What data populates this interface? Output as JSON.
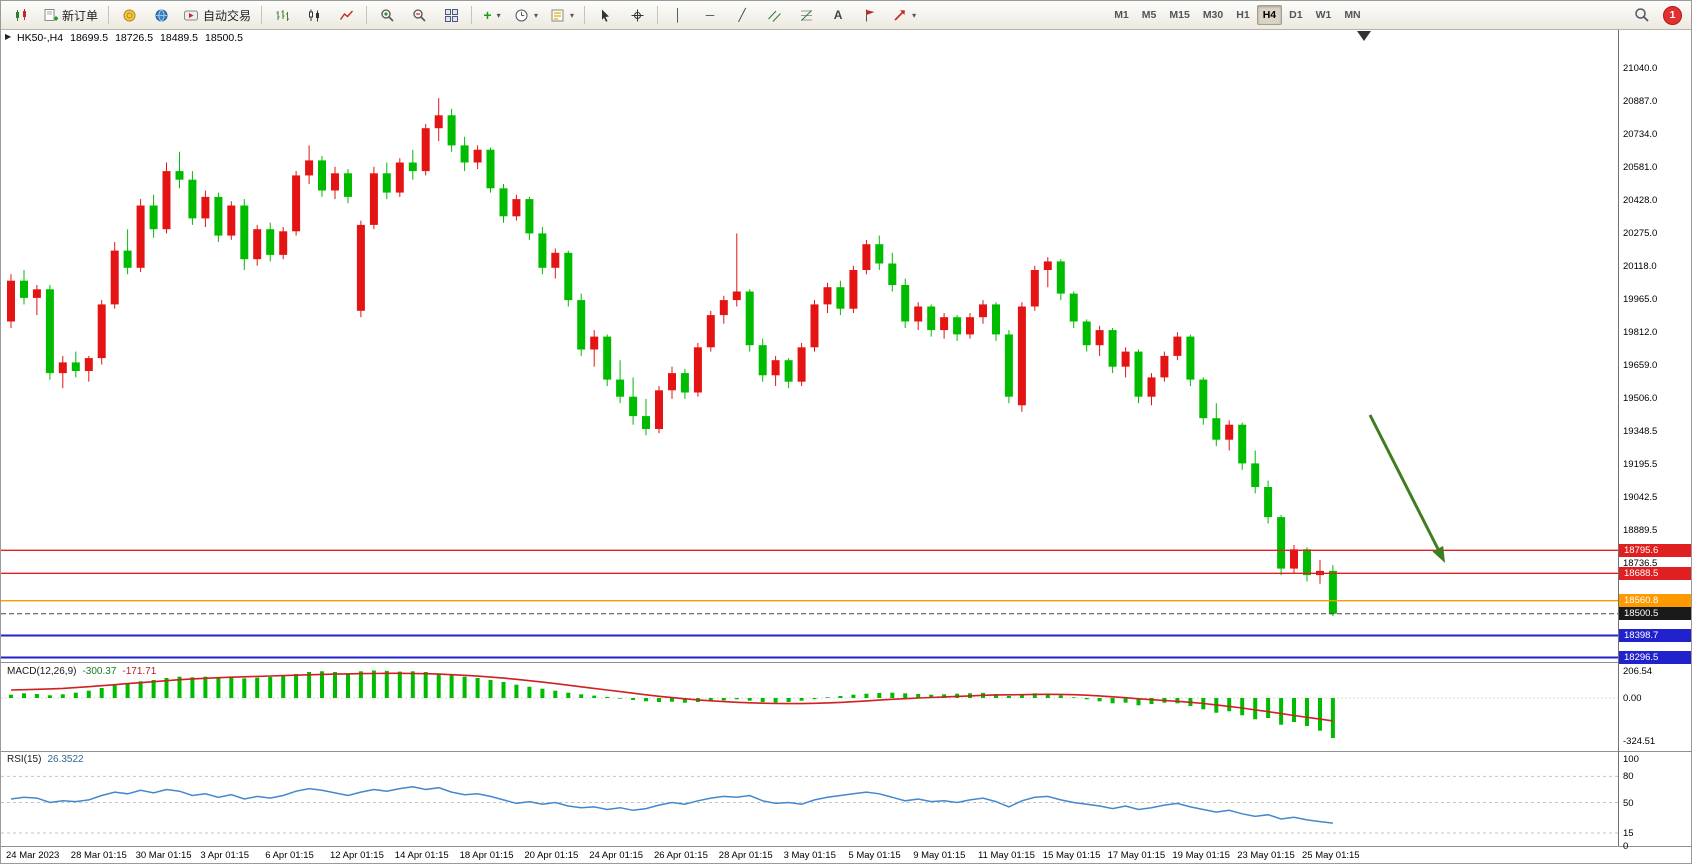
{
  "toolbar": {
    "buttons": {
      "new_order": "新订单",
      "auto_trading": "自动交易"
    },
    "timeframes": {
      "items": [
        "M1",
        "M5",
        "M15",
        "M30",
        "H1",
        "H4",
        "D1",
        "W1",
        "MN"
      ],
      "active": "H4"
    },
    "notification_count": "1"
  },
  "icons": {
    "vline": "│",
    "hline": "─",
    "trend": "╱",
    "text_tool": "A",
    "caret": "▾",
    "one_click": "▶",
    "indicator_plus": "+"
  },
  "chart": {
    "symbol_line": "HK50-,H4",
    "ohlc": {
      "open": "18699.5",
      "high": "18726.5",
      "low": "18489.5",
      "close": "18500.5"
    },
    "price_axis": [
      "21040.0",
      "20887.0",
      "20734.0",
      "20581.0",
      "20428.0",
      "20275.0",
      "20118.0",
      "19965.0",
      "19812.0",
      "19659.0",
      "19506.0",
      "19348.5",
      "19195.5",
      "19042.5",
      "18889.5",
      "18736.5"
    ],
    "price_lines": [
      {
        "value": "18795.6",
        "color": "#e02020",
        "style": "solid",
        "width": 1.4
      },
      {
        "value": "18688.5",
        "color": "#e02020",
        "style": "solid",
        "width": 1.4
      },
      {
        "value": "18560.8",
        "color": "#ff9900",
        "style": "solid",
        "width": 1.4
      },
      {
        "value": "18500.5",
        "color": "#444444",
        "style": "dash",
        "width": 1,
        "badge": "#1a1a1a"
      },
      {
        "value": "18398.7",
        "color": "#2222cc",
        "style": "solid",
        "width": 2
      },
      {
        "value": "18296.5",
        "color": "#2222cc",
        "style": "solid",
        "width": 2
      }
    ],
    "colors": {
      "up": "#e41414",
      "down": "#00bc00",
      "arrow": "#3f7d20"
    },
    "arrow": {
      "from": [
        1369,
        414
      ],
      "to": [
        1444,
        562
      ]
    },
    "candles": [
      [
        19860,
        20080,
        19830,
        20050
      ],
      [
        20050,
        20100,
        19940,
        19970
      ],
      [
        19970,
        20030,
        19890,
        20010
      ],
      [
        20010,
        20030,
        19590,
        19620
      ],
      [
        19620,
        19700,
        19550,
        19670
      ],
      [
        19670,
        19720,
        19600,
        19630
      ],
      [
        19630,
        19700,
        19580,
        19690
      ],
      [
        19690,
        19960,
        19660,
        19940
      ],
      [
        19940,
        20230,
        19920,
        20190
      ],
      [
        20190,
        20290,
        20080,
        20110
      ],
      [
        20110,
        20430,
        20090,
        20400
      ],
      [
        20400,
        20450,
        20250,
        20290
      ],
      [
        20290,
        20600,
        20270,
        20560
      ],
      [
        20560,
        20650,
        20480,
        20520
      ],
      [
        20520,
        20560,
        20310,
        20340
      ],
      [
        20340,
        20470,
        20300,
        20440
      ],
      [
        20440,
        20460,
        20230,
        20260
      ],
      [
        20260,
        20420,
        20240,
        20400
      ],
      [
        20400,
        20430,
        20100,
        20150
      ],
      [
        20150,
        20310,
        20120,
        20290
      ],
      [
        20290,
        20320,
        20140,
        20170
      ],
      [
        20170,
        20300,
        20150,
        20280
      ],
      [
        20280,
        20560,
        20260,
        20540
      ],
      [
        20540,
        20680,
        20500,
        20610
      ],
      [
        20610,
        20630,
        20440,
        20470
      ],
      [
        20470,
        20580,
        20430,
        20550
      ],
      [
        20550,
        20570,
        20410,
        20440
      ],
      [
        19910,
        20330,
        19880,
        20310
      ],
      [
        20310,
        20580,
        20290,
        20550
      ],
      [
        20550,
        20600,
        20430,
        20460
      ],
      [
        20460,
        20620,
        20440,
        20600
      ],
      [
        20600,
        20660,
        20520,
        20560
      ],
      [
        20560,
        20780,
        20540,
        20760
      ],
      [
        20760,
        20900,
        20700,
        20820
      ],
      [
        20820,
        20850,
        20650,
        20680
      ],
      [
        20680,
        20720,
        20560,
        20600
      ],
      [
        20600,
        20680,
        20570,
        20660
      ],
      [
        20660,
        20670,
        20460,
        20480
      ],
      [
        20480,
        20500,
        20320,
        20350
      ],
      [
        20350,
        20450,
        20330,
        20430
      ],
      [
        20430,
        20440,
        20240,
        20270
      ],
      [
        20270,
        20300,
        20080,
        20110
      ],
      [
        20110,
        20200,
        20060,
        20180
      ],
      [
        20180,
        20190,
        19930,
        19960
      ],
      [
        19960,
        19990,
        19700,
        19730
      ],
      [
        19730,
        19820,
        19650,
        19790
      ],
      [
        19790,
        19800,
        19560,
        19590
      ],
      [
        19590,
        19680,
        19480,
        19510
      ],
      [
        19510,
        19600,
        19380,
        19420
      ],
      [
        19420,
        19500,
        19330,
        19360
      ],
      [
        19360,
        19560,
        19340,
        19540
      ],
      [
        19540,
        19650,
        19500,
        19620
      ],
      [
        19620,
        19640,
        19500,
        19530
      ],
      [
        19530,
        19760,
        19510,
        19740
      ],
      [
        19740,
        19910,
        19720,
        19890
      ],
      [
        19890,
        19980,
        19850,
        19960
      ],
      [
        19960,
        20270,
        19930,
        20000
      ],
      [
        20000,
        20010,
        19720,
        19750
      ],
      [
        19750,
        19780,
        19580,
        19610
      ],
      [
        19610,
        19700,
        19560,
        19680
      ],
      [
        19680,
        19690,
        19550,
        19580
      ],
      [
        19580,
        19760,
        19560,
        19740
      ],
      [
        19740,
        19960,
        19720,
        19940
      ],
      [
        19940,
        20040,
        19900,
        20020
      ],
      [
        20020,
        20050,
        19890,
        19920
      ],
      [
        19920,
        20120,
        19900,
        20100
      ],
      [
        20100,
        20240,
        20080,
        20220
      ],
      [
        20220,
        20260,
        20100,
        20130
      ],
      [
        20130,
        20180,
        20000,
        20030
      ],
      [
        20030,
        20060,
        19830,
        19860
      ],
      [
        19860,
        19950,
        19820,
        19930
      ],
      [
        19930,
        19940,
        19790,
        19820
      ],
      [
        19820,
        19900,
        19780,
        19880
      ],
      [
        19880,
        19890,
        19770,
        19800
      ],
      [
        19800,
        19900,
        19780,
        19880
      ],
      [
        19880,
        19960,
        19850,
        19940
      ],
      [
        19940,
        19950,
        19770,
        19800
      ],
      [
        19800,
        19820,
        19480,
        19510
      ],
      [
        19470,
        19950,
        19440,
        19930
      ],
      [
        19930,
        20120,
        19910,
        20100
      ],
      [
        20100,
        20160,
        20020,
        20140
      ],
      [
        20140,
        20150,
        19960,
        19990
      ],
      [
        19990,
        20000,
        19830,
        19860
      ],
      [
        19860,
        19870,
        19720,
        19750
      ],
      [
        19750,
        19840,
        19700,
        19820
      ],
      [
        19820,
        19830,
        19620,
        19650
      ],
      [
        19650,
        19740,
        19600,
        19720
      ],
      [
        19720,
        19730,
        19480,
        19510
      ],
      [
        19510,
        19620,
        19470,
        19600
      ],
      [
        19600,
        19720,
        19580,
        19700
      ],
      [
        19700,
        19810,
        19680,
        19790
      ],
      [
        19790,
        19800,
        19560,
        19590
      ],
      [
        19590,
        19600,
        19380,
        19410
      ],
      [
        19410,
        19480,
        19280,
        19310
      ],
      [
        19310,
        19400,
        19260,
        19380
      ],
      [
        19380,
        19390,
        19170,
        19200
      ],
      [
        19200,
        19260,
        19060,
        19090
      ],
      [
        19090,
        19120,
        18920,
        18950
      ],
      [
        18950,
        18960,
        18680,
        18710
      ],
      [
        18710,
        18820,
        18690,
        18800
      ],
      [
        18800,
        18810,
        18650,
        18680
      ],
      [
        18680,
        18750,
        18640,
        18699.5
      ],
      [
        18699.5,
        18726.5,
        18489.5,
        18500.5
      ]
    ],
    "time_axis": [
      "24 Mar 2023",
      "28 Mar 01:15",
      "30 Mar 01:15",
      "3 Apr 01:15",
      "6 Apr 01:15",
      "12 Apr 01:15",
      "14 Apr 01:15",
      "18 Apr 01:15",
      "20 Apr 01:15",
      "24 Apr 01:15",
      "26 Apr 01:15",
      "28 Apr 01:15",
      "3 May 01:15",
      "5 May 01:15",
      "9 May 01:15",
      "11 May 01:15",
      "15 May 01:15",
      "17 May 01:15",
      "19 May 01:15",
      "23 May 01:15",
      "25 May 01:15"
    ]
  },
  "macd": {
    "label": "MACD(12,26,9)",
    "value_main": "-300.37",
    "value_signal": "-171.71",
    "axis": [
      "206.54",
      "0.00",
      "-324.51"
    ],
    "histogram": [
      25,
      35,
      30,
      20,
      28,
      40,
      55,
      75,
      95,
      110,
      125,
      135,
      150,
      160,
      155,
      160,
      150,
      158,
      148,
      152,
      158,
      165,
      180,
      195,
      200,
      195,
      185,
      200,
      206,
      203,
      198,
      200,
      195,
      185,
      175,
      160,
      150,
      135,
      120,
      100,
      85,
      70,
      55,
      40,
      28,
      18,
      8,
      -5,
      -15,
      -25,
      -30,
      -28,
      -35,
      -30,
      -25,
      -18,
      -10,
      -20,
      -30,
      -35,
      -30,
      -20,
      -8,
      5,
      15,
      25,
      32,
      38,
      40,
      35,
      30,
      25,
      28,
      32,
      35,
      38,
      30,
      15,
      25,
      35,
      30,
      20,
      5,
      -10,
      -25,
      -40,
      -35,
      -55,
      -45,
      -35,
      -40,
      -60,
      -85,
      -110,
      -100,
      -130,
      -160,
      -150,
      -200,
      -180,
      -210,
      -245,
      -300.37
    ],
    "signal": [
      60,
      62,
      65,
      68,
      72,
      78,
      85,
      92,
      100,
      108,
      115,
      122,
      130,
      137,
      143,
      148,
      152,
      156,
      159,
      162,
      165,
      168,
      171,
      174,
      177,
      179,
      181,
      183,
      184,
      185,
      185,
      184,
      182,
      179,
      175,
      170,
      164,
      157,
      149,
      140,
      130,
      119,
      108,
      96,
      84,
      72,
      60,
      48,
      36,
      24,
      13,
      3,
      -6,
      -14,
      -21,
      -27,
      -32,
      -36,
      -39,
      -41,
      -42,
      -42,
      -40,
      -37,
      -33,
      -28,
      -22,
      -16,
      -10,
      -5,
      0,
      4,
      8,
      12,
      16,
      20,
      23,
      24,
      25,
      27,
      28,
      27,
      25,
      21,
      16,
      9,
      2,
      -6,
      -13,
      -19,
      -25,
      -32,
      -41,
      -52,
      -63,
      -75,
      -89,
      -102,
      -117,
      -131,
      -145,
      -158,
      -171.71
    ]
  },
  "rsi": {
    "label": "RSI(15)",
    "value": "26.3522",
    "axis": [
      "100",
      "80",
      "50",
      "15",
      "0"
    ],
    "levels": [
      80,
      50,
      15
    ],
    "points": [
      54,
      56,
      55,
      50,
      52,
      51,
      53,
      58,
      62,
      60,
      64,
      61,
      65,
      63,
      58,
      60,
      56,
      59,
      54,
      57,
      55,
      58,
      63,
      66,
      64,
      61,
      58,
      62,
      65,
      63,
      66,
      68,
      65,
      67,
      62,
      59,
      60,
      57,
      53,
      49,
      51,
      48,
      50,
      46,
      44,
      45,
      42,
      44,
      41,
      43,
      47,
      50,
      48,
      52,
      55,
      57,
      56,
      58,
      52,
      49,
      50,
      48,
      53,
      56,
      58,
      60,
      62,
      60,
      56,
      52,
      54,
      51,
      52,
      50,
      53,
      55,
      51,
      45,
      52,
      56,
      57,
      53,
      50,
      48,
      46,
      43,
      46,
      42,
      44,
      47,
      49,
      45,
      42,
      39,
      41,
      37,
      34,
      36,
      31,
      33,
      30,
      28,
      26.35
    ]
  }
}
